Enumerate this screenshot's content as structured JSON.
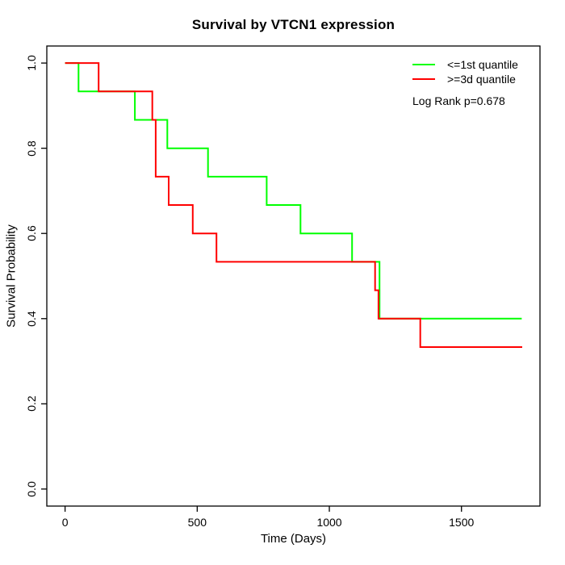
{
  "figure": {
    "title": "Survival by VTCN1 expression",
    "xlabel": "Time (Days)",
    "ylabel": "Survival Probability",
    "annotation": "Log Rank p=0.678"
  },
  "legend": {
    "position": "top-right-inside",
    "entries": [
      {
        "id": "low-expression",
        "label": "<=1st quantile",
        "color": "#00ff00"
      },
      {
        "id": "high-expression",
        "label": ">=3d quantile",
        "color": "#ff0000"
      }
    ]
  },
  "chart_data": {
    "type": "line",
    "subtype": "kaplan-meier-step",
    "title": "Survival by VTCN1 expression",
    "xlabel": "Time (Days)",
    "ylabel": "Survival Probability",
    "annotation": "Log Rank p=0.678",
    "grid": false,
    "frame_box": true,
    "axis_color": "#000000",
    "background_color": "#ffffff",
    "x_domain": [
      -69.1,
      1797.1
    ],
    "y_domain": [
      -0.04,
      1.04
    ],
    "xlim_data": [
      0,
      1728
    ],
    "ylim_data": [
      0,
      1
    ],
    "x_ticks": [
      {
        "label": "0",
        "value": 0
      },
      {
        "label": "500",
        "value": 500
      },
      {
        "label": "1000",
        "value": 1000
      },
      {
        "label": "1500",
        "value": 1500
      }
    ],
    "y_ticks": [
      {
        "label": "0.0",
        "value": 0.0
      },
      {
        "label": "0.2",
        "value": 0.2
      },
      {
        "label": "0.4",
        "value": 0.4
      },
      {
        "label": "0.6",
        "value": 0.6
      },
      {
        "label": "0.8",
        "value": 0.8
      },
      {
        "label": "1.0",
        "value": 1.0
      }
    ],
    "series": [
      {
        "name": "<=1st quantile",
        "color": "#00ff00",
        "line_width": 2,
        "steps": [
          [
            0,
            1.0
          ],
          [
            51,
            0.9333
          ],
          [
            264,
            0.8667
          ],
          [
            387,
            0.8
          ],
          [
            541,
            0.7333
          ],
          [
            763,
            0.6667
          ],
          [
            891,
            0.6
          ],
          [
            1086,
            0.5333
          ],
          [
            1190,
            0.4
          ],
          [
            1728,
            0.4
          ]
        ]
      },
      {
        "name": ">=3d quantile",
        "color": "#ff0000",
        "line_width": 2,
        "steps": [
          [
            0,
            1.0
          ],
          [
            127,
            0.9333
          ],
          [
            330,
            0.8667
          ],
          [
            343,
            0.7333
          ],
          [
            392,
            0.6667
          ],
          [
            483,
            0.6
          ],
          [
            573,
            0.5333
          ],
          [
            1173,
            0.4667
          ],
          [
            1186,
            0.4
          ],
          [
            1344,
            0.3333
          ],
          [
            1730,
            0.3333
          ]
        ]
      }
    ]
  }
}
